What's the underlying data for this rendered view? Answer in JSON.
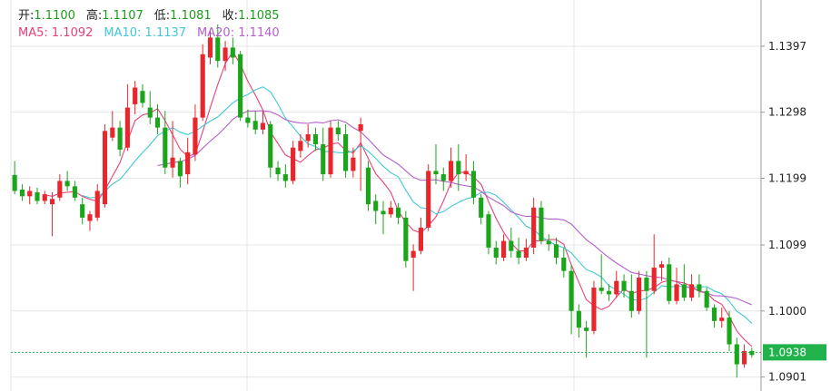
{
  "header": {
    "open_label": "开:",
    "open_value": "1.1100",
    "high_label": "高:",
    "high_value": "1.1107",
    "low_label": "低:",
    "low_value": "1.1081",
    "close_label": "收:",
    "close_value": "1.1085",
    "ma5_text": "MA5: 1.1092",
    "ma10_text": "MA10: 1.1137",
    "ma20_text": "MA20: 1.1140"
  },
  "colors": {
    "up": "#e8262b",
    "down": "#1aa51a",
    "ma5": "#e8417a",
    "ma10": "#3fc8d6",
    "ma20": "#b65fcc",
    "grid": "#e6e6e6",
    "price_tag": "#22b24c",
    "header_value": "#1a9e1a"
  },
  "chart_data": {
    "type": "candlestick",
    "title": "",
    "xlabel": "",
    "ylabel": "",
    "y_ticks": [
      "1.1397",
      "1.1298",
      "1.1199",
      "1.1099",
      "1.1000",
      "1.0901"
    ],
    "ylim": [
      1.088,
      1.145
    ],
    "current_price": "1.0938",
    "grid": true,
    "candles": [
      [
        1.1204,
        1.118,
        1.1225,
        1.1175
      ],
      [
        1.1182,
        1.1172,
        1.119,
        1.1165
      ],
      [
        1.1172,
        1.118,
        1.1187,
        1.116
      ],
      [
        1.1178,
        1.1165,
        1.1185,
        1.116
      ],
      [
        1.1165,
        1.1175,
        1.118,
        1.116
      ],
      [
        1.116,
        1.1168,
        1.1178,
        1.1112
      ],
      [
        1.117,
        1.1195,
        1.1205,
        1.1165
      ],
      [
        1.1195,
        1.1187,
        1.121,
        1.118
      ],
      [
        1.1187,
        1.117,
        1.1195,
        1.1165
      ],
      [
        1.116,
        1.114,
        1.117,
        1.113
      ],
      [
        1.1135,
        1.1145,
        1.115,
        1.112
      ],
      [
        1.114,
        1.118,
        1.119,
        1.1135
      ],
      [
        1.116,
        1.127,
        1.128,
        1.1155
      ],
      [
        1.126,
        1.1275,
        1.13,
        1.1255
      ],
      [
        1.1275,
        1.1242,
        1.1285,
        1.1232
      ],
      [
        1.1245,
        1.1305,
        1.134,
        1.124
      ],
      [
        1.131,
        1.1335,
        1.1345,
        1.1295
      ],
      [
        1.133,
        1.1312,
        1.134,
        1.1305
      ],
      [
        1.1305,
        1.129,
        1.133,
        1.128
      ],
      [
        1.129,
        1.1275,
        1.131,
        1.1265
      ],
      [
        1.1275,
        1.1215,
        1.13,
        1.1205
      ],
      [
        1.1215,
        1.123,
        1.1285,
        1.12
      ],
      [
        1.1225,
        1.1202,
        1.123,
        1.1185
      ],
      [
        1.1205,
        1.1238,
        1.126,
        1.119
      ],
      [
        1.1235,
        1.129,
        1.131,
        1.1225
      ],
      [
        1.129,
        1.1385,
        1.14,
        1.1285
      ],
      [
        1.138,
        1.141,
        1.142,
        1.137
      ],
      [
        1.141,
        1.1375,
        1.143,
        1.1365
      ],
      [
        1.1375,
        1.1395,
        1.1405,
        1.136
      ],
      [
        1.1395,
        1.138,
        1.141,
        1.137
      ],
      [
        1.1385,
        1.129,
        1.139,
        1.1285
      ],
      [
        1.129,
        1.1282,
        1.1302,
        1.1275
      ],
      [
        1.1285,
        1.1272,
        1.13,
        1.1265
      ],
      [
        1.1272,
        1.1282,
        1.13,
        1.1265
      ],
      [
        1.128,
        1.1215,
        1.1285,
        1.12
      ],
      [
        1.1215,
        1.1205,
        1.1225,
        1.1195
      ],
      [
        1.1205,
        1.1195,
        1.122,
        1.1185
      ],
      [
        1.1195,
        1.1245,
        1.1255,
        1.119
      ],
      [
        1.124,
        1.1255,
        1.1265,
        1.123
      ],
      [
        1.1255,
        1.1265,
        1.128,
        1.1245
      ],
      [
        1.1265,
        1.125,
        1.1275,
        1.124
      ],
      [
        1.125,
        1.1205,
        1.1275,
        1.1195
      ],
      [
        1.1205,
        1.1275,
        1.1285,
        1.12
      ],
      [
        1.1275,
        1.1265,
        1.1285,
        1.1255
      ],
      [
        1.1265,
        1.121,
        1.128,
        1.12
      ],
      [
        1.121,
        1.123,
        1.1245,
        1.12
      ],
      [
        1.127,
        1.128,
        1.129,
        1.118
      ],
      [
        1.1215,
        1.116,
        1.1225,
        1.115
      ],
      [
        1.1165,
        1.115,
        1.1175,
        1.113
      ],
      [
        1.115,
        1.1145,
        1.1165,
        1.1115
      ],
      [
        1.1145,
        1.1155,
        1.1165,
        1.114
      ],
      [
        1.1155,
        1.114,
        1.1162,
        1.113
      ],
      [
        1.114,
        1.1075,
        1.115,
        1.1065
      ],
      [
        1.108,
        1.109,
        1.11,
        1.103
      ],
      [
        1.109,
        1.1125,
        1.114,
        1.1085
      ],
      [
        1.1125,
        1.121,
        1.122,
        1.112
      ],
      [
        1.121,
        1.1205,
        1.125,
        1.119
      ],
      [
        1.1205,
        1.1195,
        1.1215,
        1.118
      ],
      [
        1.1195,
        1.1225,
        1.1245,
        1.1185
      ],
      [
        1.1225,
        1.1205,
        1.125,
        1.118
      ],
      [
        1.1205,
        1.121,
        1.1235,
        1.1195
      ],
      [
        1.121,
        1.117,
        1.1225,
        1.116
      ],
      [
        1.117,
        1.114,
        1.1175,
        1.113
      ],
      [
        1.1145,
        1.1095,
        1.115,
        1.1085
      ],
      [
        1.1095,
        1.108,
        1.1105,
        1.107
      ],
      [
        1.108,
        1.1105,
        1.1115,
        1.1075
      ],
      [
        1.1105,
        1.109,
        1.1125,
        1.108
      ],
      [
        1.109,
        1.108,
        1.111,
        1.107
      ],
      [
        1.108,
        1.1095,
        1.1108,
        1.1075
      ],
      [
        1.1095,
        1.1155,
        1.117,
        1.1085
      ],
      [
        1.1155,
        1.1105,
        1.1165,
        1.11
      ],
      [
        1.1105,
        1.11,
        1.1115,
        1.109
      ],
      [
        1.11,
        1.108,
        1.111,
        1.107
      ],
      [
        1.108,
        1.106,
        1.1095,
        1.105
      ],
      [
        1.106,
        1.1,
        1.107,
        1.0965
      ],
      [
        1.1,
        1.0975,
        1.101,
        1.096
      ],
      [
        1.0975,
        1.097,
        1.0985,
        1.093
      ],
      [
        1.097,
        1.1035,
        1.1045,
        1.0965
      ],
      [
        1.1035,
        1.103,
        1.1085,
        1.1025
      ],
      [
        1.103,
        1.1025,
        1.104,
        1.1015
      ],
      [
        1.1025,
        1.1045,
        1.106,
        1.102
      ],
      [
        1.1045,
        1.103,
        1.1055,
        1.102
      ],
      [
        1.103,
        1.1,
        1.1055,
        1.099
      ],
      [
        1.1,
        1.105,
        1.106,
        1.0995
      ],
      [
        1.105,
        1.103,
        1.106,
        1.093
      ],
      [
        1.103,
        1.1065,
        1.1115,
        1.1025
      ],
      [
        1.1065,
        1.107,
        1.1075,
        1.1045
      ],
      [
        1.107,
        1.1015,
        1.108,
        1.101
      ],
      [
        1.1015,
        1.104,
        1.1065,
        1.101
      ],
      [
        1.104,
        1.102,
        1.107,
        1.1015
      ],
      [
        1.102,
        1.104,
        1.1055,
        1.1015
      ],
      [
        1.104,
        1.103,
        1.1055,
        1.102
      ],
      [
        1.103,
        1.1005,
        1.1035,
        1.1
      ],
      [
        1.1005,
        1.0985,
        1.101,
        1.0975
      ],
      [
        1.0985,
        1.099,
        1.1005,
        1.0975
      ],
      [
        1.099,
        1.095,
        1.1,
        1.094
      ],
      [
        1.095,
        1.092,
        1.096,
        1.09
      ],
      [
        1.092,
        1.094,
        1.095,
        1.0915
      ],
      [
        1.094,
        1.0934,
        1.0945,
        1.093
      ]
    ],
    "ma_series": [
      {
        "name": "MA5",
        "period": 5,
        "color": "#e8417a"
      },
      {
        "name": "MA10",
        "period": 10,
        "color": "#3fc8d6"
      },
      {
        "name": "MA20",
        "period": 20,
        "color": "#b65fcc"
      }
    ]
  }
}
